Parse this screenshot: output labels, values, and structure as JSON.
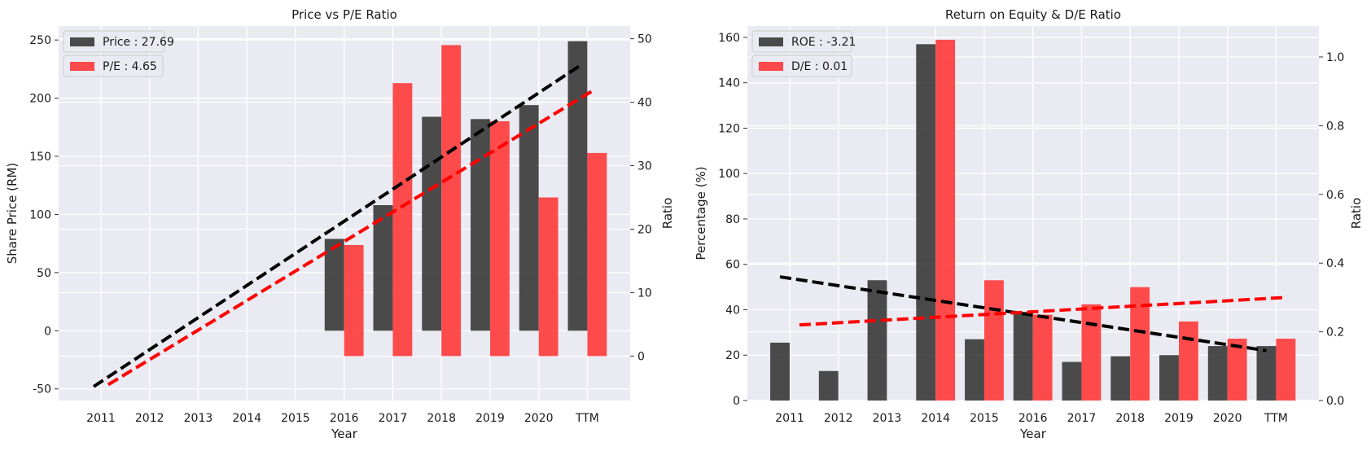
{
  "chart_data": [
    {
      "type": "bar",
      "title": "Price vs P/E Ratio",
      "xlabel": "Year",
      "ylabel": "Share Price (RM)",
      "y2label": "Ratio",
      "categories": [
        "2011",
        "2012",
        "2013",
        "2014",
        "2015",
        "2016",
        "2017",
        "2018",
        "2019",
        "2020",
        "TTM"
      ],
      "ylim": [
        -60,
        262
      ],
      "y2lim": [
        -7,
        52
      ],
      "yticks": [
        -50,
        0,
        50,
        100,
        150,
        200,
        250
      ],
      "y2ticks": [
        0,
        10,
        20,
        30,
        40,
        50
      ],
      "grid": true,
      "legend_position": "top-left",
      "series": [
        {
          "name": "Price : 27.69",
          "axis": "left",
          "color": "#333333",
          "values": [
            null,
            null,
            null,
            null,
            null,
            79,
            108,
            184,
            182,
            194,
            249
          ]
        },
        {
          "name": "P/E : 4.65",
          "axis": "right",
          "color": "#ff3333",
          "values": [
            null,
            null,
            null,
            null,
            null,
            17.5,
            43,
            49,
            37,
            25,
            32
          ]
        }
      ],
      "trendlines": [
        {
          "axis": "left",
          "color": "#000000",
          "x": [
            -0.15,
            9.85
          ],
          "y": [
            -48,
            228
          ]
        },
        {
          "axis": "right",
          "color": "#ff0000",
          "x": [
            0.15,
            10.15
          ],
          "y": [
            -4.5,
            42
          ]
        }
      ]
    },
    {
      "type": "bar",
      "title": "Return on Equity & D/E Ratio",
      "xlabel": "Year",
      "ylabel": "Percentage (%)",
      "y2label": "Ratio",
      "categories": [
        "2011",
        "2012",
        "2013",
        "2014",
        "2015",
        "2016",
        "2017",
        "2018",
        "2019",
        "2020",
        "TTM"
      ],
      "ylim": [
        0,
        165
      ],
      "y2lim": [
        0,
        1.09
      ],
      "yticks": [
        0,
        20,
        40,
        60,
        80,
        100,
        120,
        140,
        160
      ],
      "y2ticks": [
        0.0,
        0.2,
        0.4,
        0.6,
        0.8,
        1.0
      ],
      "grid": true,
      "legend_position": "top-left",
      "series": [
        {
          "name": "ROE : -3.21",
          "axis": "left",
          "color": "#333333",
          "values": [
            25.5,
            13,
            53,
            157,
            27,
            39,
            17,
            19.5,
            20,
            24,
            24
          ]
        },
        {
          "name": "D/E : 0.01",
          "axis": "right",
          "color": "#ff3333",
          "values": [
            null,
            null,
            null,
            1.05,
            0.35,
            0.25,
            0.28,
            0.33,
            0.23,
            0.18,
            0.18
          ]
        }
      ],
      "trendlines": [
        {
          "axis": "left",
          "color": "#000000",
          "x": [
            -0.2,
            9.8
          ],
          "y": [
            54.5,
            22
          ]
        },
        {
          "axis": "right",
          "color": "#ff0000",
          "x": [
            0.2,
            10.2
          ],
          "y": [
            0.22,
            0.3
          ]
        }
      ]
    }
  ]
}
